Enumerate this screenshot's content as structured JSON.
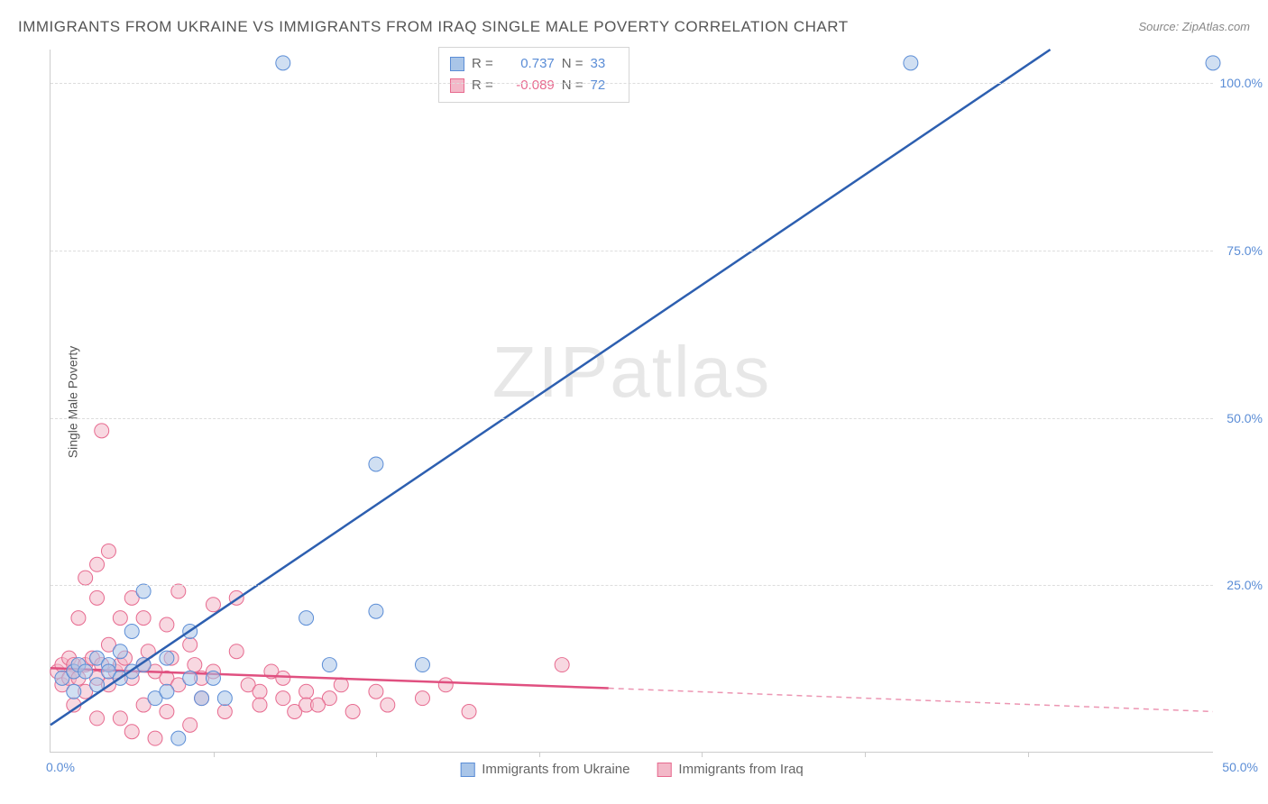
{
  "title": "IMMIGRANTS FROM UKRAINE VS IMMIGRANTS FROM IRAQ SINGLE MALE POVERTY CORRELATION CHART",
  "source": "Source: ZipAtlas.com",
  "ylabel": "Single Male Poverty",
  "watermark": "ZIPatlas",
  "xlim": [
    0,
    50
  ],
  "ylim": [
    0,
    105
  ],
  "yticks": [
    {
      "value": 25,
      "label": "25.0%"
    },
    {
      "value": 50,
      "label": "50.0%"
    },
    {
      "value": 75,
      "label": "75.0%"
    },
    {
      "value": 100,
      "label": "100.0%"
    }
  ],
  "xticks_left": {
    "value": 0,
    "label": "0.0%"
  },
  "xticks_right": {
    "value": 50,
    "label": "50.0%"
  },
  "xtick_marks": [
    7,
    14,
    21,
    28,
    35,
    42
  ],
  "series": {
    "ukraine": {
      "label": "Immigrants from Ukraine",
      "R": "0.737",
      "N": "33",
      "fill_color": "#a9c5e8",
      "stroke_color": "#5b8dd6",
      "line_color": "#2d5fb0",
      "marker_radius": 8,
      "marker_opacity": 0.55,
      "trend_solid": {
        "x1": 0,
        "y1": 4,
        "x2": 43,
        "y2": 105
      },
      "points": [
        [
          0.5,
          11
        ],
        [
          1,
          12
        ],
        [
          1,
          9
        ],
        [
          1.2,
          13
        ],
        [
          1.5,
          12
        ],
        [
          2,
          14
        ],
        [
          2,
          10
        ],
        [
          2.5,
          13
        ],
        [
          2.5,
          12
        ],
        [
          3,
          15
        ],
        [
          3,
          11
        ],
        [
          3.5,
          18
        ],
        [
          3.5,
          12
        ],
        [
          4,
          13
        ],
        [
          4,
          24
        ],
        [
          4.5,
          8
        ],
        [
          5,
          9
        ],
        [
          5,
          14
        ],
        [
          5.5,
          2
        ],
        [
          6,
          18
        ],
        [
          6,
          11
        ],
        [
          6.5,
          8
        ],
        [
          7,
          11
        ],
        [
          7.5,
          8
        ],
        [
          10,
          103
        ],
        [
          11,
          20
        ],
        [
          12,
          13
        ],
        [
          14,
          21
        ],
        [
          14,
          43
        ],
        [
          16,
          13
        ],
        [
          19,
          103
        ],
        [
          37,
          103
        ],
        [
          50,
          103
        ]
      ]
    },
    "iraq": {
      "label": "Immigrants from Iraq",
      "R": "-0.089",
      "N": "72",
      "fill_color": "#f3b8c8",
      "stroke_color": "#e76a8f",
      "line_color": "#e05080",
      "marker_radius": 8,
      "marker_opacity": 0.55,
      "trend_solid": {
        "x1": 0,
        "y1": 12.5,
        "x2": 24,
        "y2": 9.5
      },
      "trend_dashed": {
        "x1": 24,
        "y1": 9.5,
        "x2": 50,
        "y2": 6
      },
      "points": [
        [
          0.3,
          12
        ],
        [
          0.5,
          10
        ],
        [
          0.5,
          13
        ],
        [
          0.8,
          11
        ],
        [
          0.8,
          14
        ],
        [
          1,
          13
        ],
        [
          1,
          7
        ],
        [
          1,
          12
        ],
        [
          1.2,
          20
        ],
        [
          1.2,
          11
        ],
        [
          1.5,
          13
        ],
        [
          1.5,
          26
        ],
        [
          1.5,
          9
        ],
        [
          1.8,
          14
        ],
        [
          2,
          23
        ],
        [
          2,
          11
        ],
        [
          2,
          28
        ],
        [
          2,
          5
        ],
        [
          2.2,
          13
        ],
        [
          2.2,
          48
        ],
        [
          2.5,
          16
        ],
        [
          2.5,
          10
        ],
        [
          2.5,
          30
        ],
        [
          2.8,
          12
        ],
        [
          3,
          13
        ],
        [
          3,
          20
        ],
        [
          3,
          5
        ],
        [
          3.2,
          14
        ],
        [
          3.5,
          11
        ],
        [
          3.5,
          23
        ],
        [
          3.5,
          3
        ],
        [
          4,
          13
        ],
        [
          4,
          20
        ],
        [
          4,
          7
        ],
        [
          4.2,
          15
        ],
        [
          4.5,
          12
        ],
        [
          4.5,
          2
        ],
        [
          5,
          19
        ],
        [
          5,
          11
        ],
        [
          5,
          6
        ],
        [
          5.2,
          14
        ],
        [
          5.5,
          10
        ],
        [
          5.5,
          24
        ],
        [
          6,
          16
        ],
        [
          6,
          4
        ],
        [
          6.2,
          13
        ],
        [
          6.5,
          11
        ],
        [
          6.5,
          8
        ],
        [
          7,
          22
        ],
        [
          7,
          12
        ],
        [
          7.5,
          6
        ],
        [
          8,
          15
        ],
        [
          8,
          23
        ],
        [
          8.5,
          10
        ],
        [
          9,
          9
        ],
        [
          9,
          7
        ],
        [
          9.5,
          12
        ],
        [
          10,
          11
        ],
        [
          10,
          8
        ],
        [
          10.5,
          6
        ],
        [
          11,
          9
        ],
        [
          11,
          7
        ],
        [
          12,
          8
        ],
        [
          12.5,
          10
        ],
        [
          13,
          6
        ],
        [
          14,
          9
        ],
        [
          14.5,
          7
        ],
        [
          16,
          8
        ],
        [
          17,
          10
        ],
        [
          18,
          6
        ],
        [
          22,
          13
        ],
        [
          11.5,
          7
        ]
      ]
    }
  },
  "legend_labels": {
    "r_prefix": "R =",
    "n_prefix": "N ="
  },
  "colors": {
    "title": "#555555",
    "axis": "#cccccc",
    "grid": "#dddddd",
    "tick_text": "#5b8dd6",
    "background": "#ffffff"
  },
  "fonts": {
    "title_size": 17,
    "label_size": 14,
    "legend_size": 15,
    "watermark_size": 80
  }
}
